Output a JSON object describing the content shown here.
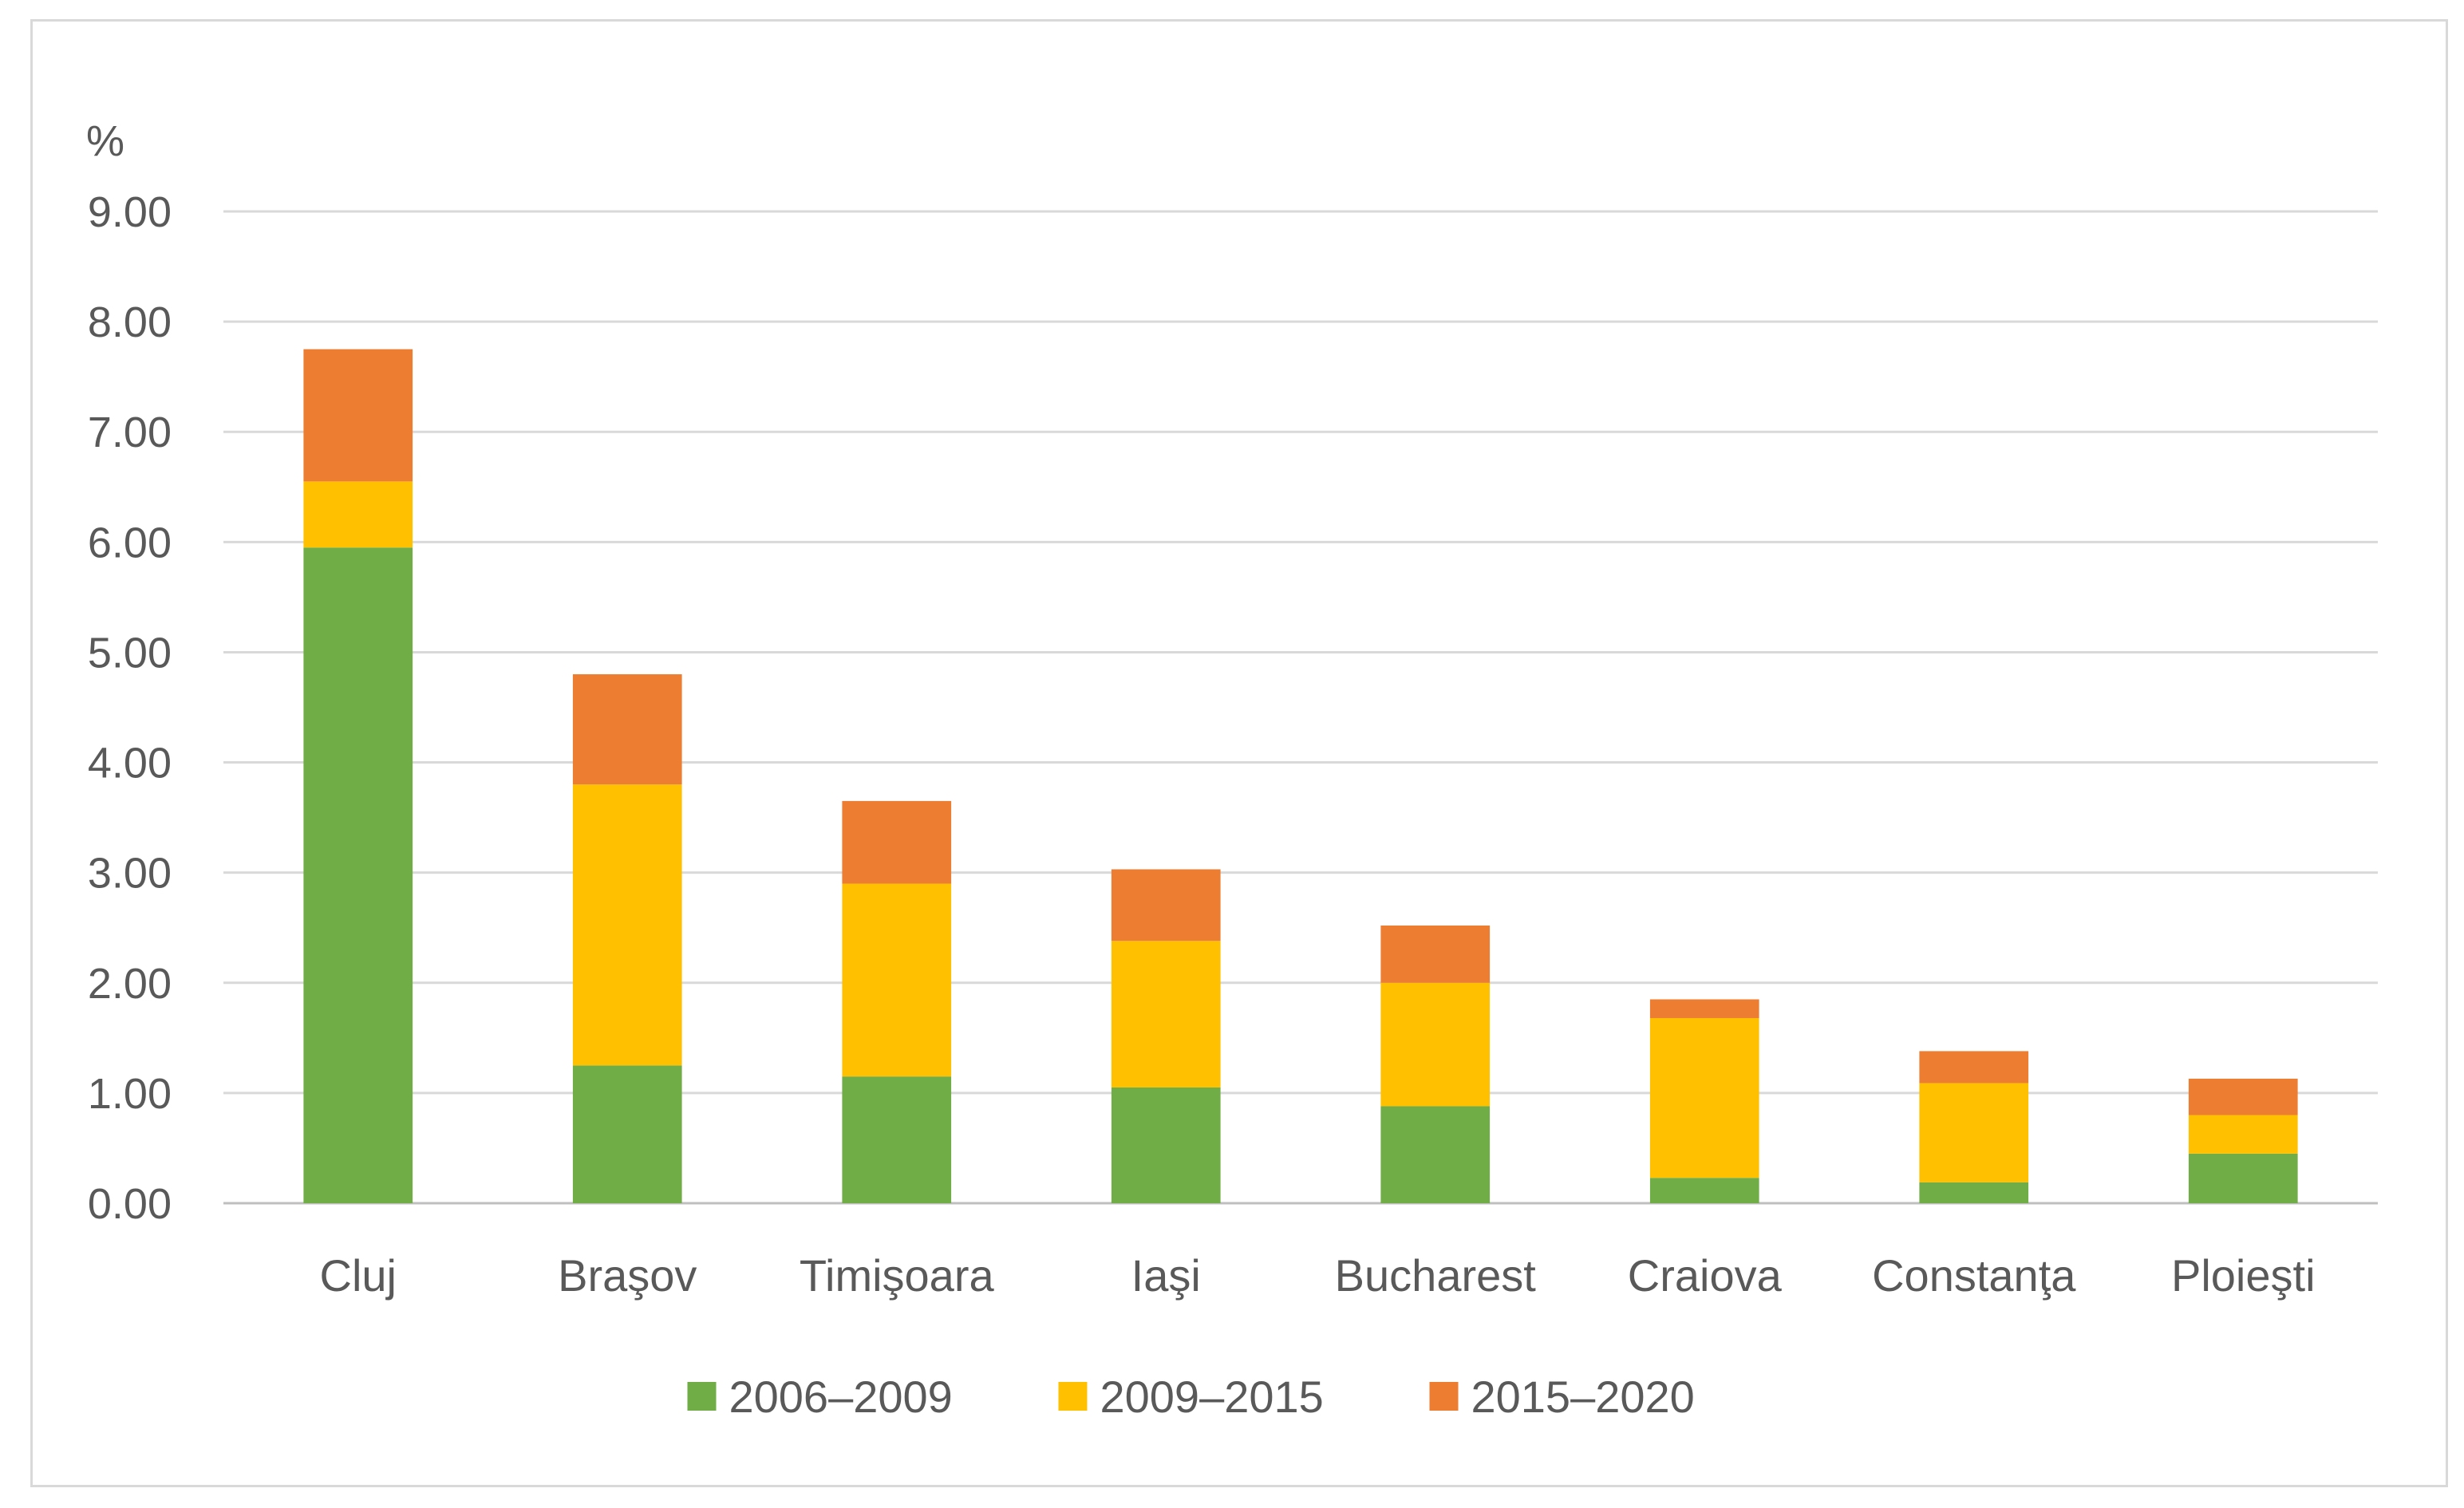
{
  "chart_data": {
    "type": "bar",
    "stacked": true,
    "ylabel": "%",
    "ylim": [
      0,
      9
    ],
    "ytick_step": 1,
    "ytick_decimals": 2,
    "grid": true,
    "legend_position": "bottom",
    "categories": [
      "Cluj",
      "Braşov",
      "Timişoara",
      "Iaşi",
      "Bucharest",
      "Craiova",
      "Constanţa",
      "Ploieşti"
    ],
    "series": [
      {
        "name": "2006–2009",
        "color": "#70ad47",
        "values": [
          5.95,
          1.25,
          1.15,
          1.05,
          0.88,
          0.23,
          0.19,
          0.45
        ]
      },
      {
        "name": "2009–2015",
        "color": "#ffc000",
        "values": [
          0.6,
          2.55,
          1.75,
          1.33,
          1.12,
          1.45,
          0.9,
          0.35
        ]
      },
      {
        "name": "2015–2020",
        "color": "#ed7d31",
        "values": [
          1.2,
          1.0,
          0.75,
          0.65,
          0.52,
          0.17,
          0.29,
          0.33
        ]
      }
    ]
  }
}
